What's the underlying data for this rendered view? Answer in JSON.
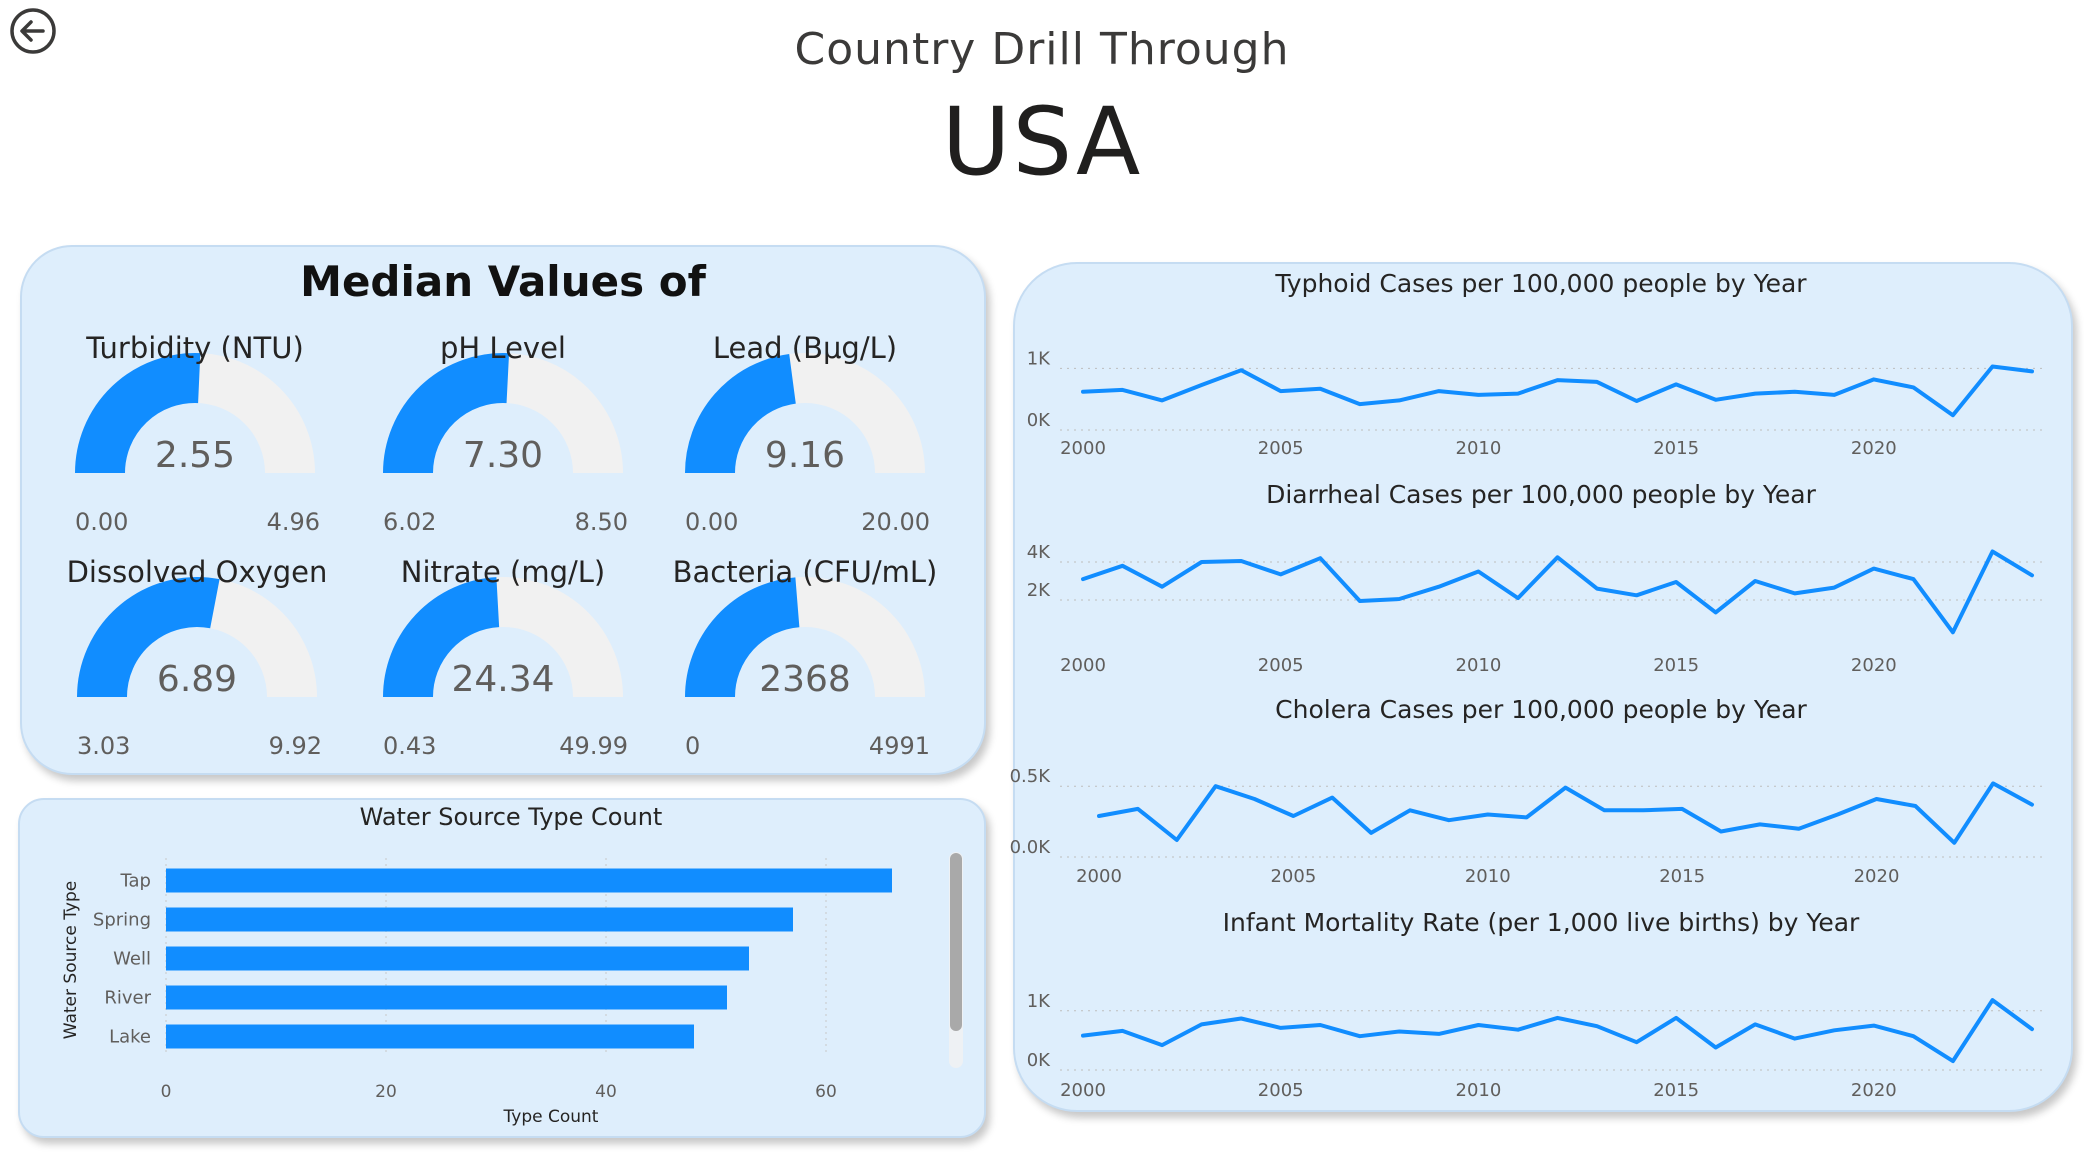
{
  "header": {
    "title": "Country Drill Through",
    "country": "USA",
    "back_icon": "arrow-left-circle-icon"
  },
  "colors": {
    "accent": "#118dff",
    "gauge_track": "#f1f1f1",
    "panel_bg": "#deeefc"
  },
  "gauge_panel": {
    "title": "Median Values of"
  },
  "gauges": [
    {
      "label": "Turbidity (NTU)",
      "value": 2.55,
      "display": "2.55",
      "min": "0.00",
      "max": "4.96",
      "min_v": 0,
      "max_v": 4.96
    },
    {
      "label": "pH Level",
      "value": 7.3,
      "display": "7.30",
      "min": "6.02",
      "max": "8.50",
      "min_v": 6.02,
      "max_v": 8.5
    },
    {
      "label": "Lead (Bμg/L)",
      "value": 9.16,
      "display": "9.16",
      "min": "0.00",
      "max": "20.00",
      "min_v": 0,
      "max_v": 20
    },
    {
      "label": "Dissolved Oxygen",
      "value": 6.89,
      "display": "6.89",
      "min": "3.03",
      "max": "9.92",
      "min_v": 3.03,
      "max_v": 9.92
    },
    {
      "label": "Nitrate (mg/L)",
      "value": 24.34,
      "display": "24.34",
      "min": "0.43",
      "max": "49.99",
      "min_v": 0.43,
      "max_v": 49.99
    },
    {
      "label": "Bacteria (CFU/mL)",
      "value": 2368,
      "display": "2368",
      "min": "0",
      "max": "4991",
      "min_v": 0,
      "max_v": 4991
    }
  ],
  "chart_data": [
    {
      "type": "bar",
      "orientation": "horizontal",
      "title": "Water Source Type Count",
      "xlabel": "Type Count",
      "ylabel": "Water Source Type",
      "categories": [
        "Tap",
        "Spring",
        "Well",
        "River",
        "Lake"
      ],
      "values": [
        66,
        57,
        53,
        51,
        48
      ],
      "xlim": [
        0,
        72
      ],
      "xticks": [
        "0",
        "20",
        "40",
        "60"
      ],
      "grid": true
    },
    {
      "type": "line",
      "title": "Typhoid Cases per 100,000 people by Year",
      "x": [
        2000,
        2001,
        2002,
        2003,
        2004,
        2005,
        2006,
        2007,
        2008,
        2009,
        2010,
        2011,
        2012,
        2013,
        2014,
        2015,
        2016,
        2017,
        2018,
        2019,
        2020,
        2021,
        2022,
        2023,
        2024
      ],
      "y": [
        620,
        650,
        480,
        730,
        970,
        630,
        670,
        420,
        480,
        630,
        570,
        590,
        810,
        780,
        470,
        740,
        490,
        590,
        620,
        570,
        820,
        690,
        240,
        1030,
        950
      ],
      "ylim": [
        0,
        1200
      ],
      "yticks": [
        "0K",
        "1K"
      ],
      "xticks": [
        "2000",
        "2005",
        "2010",
        "2015",
        "2020"
      ],
      "grid": true
    },
    {
      "type": "line",
      "title": "Diarrheal Cases per 100,000 people by Year",
      "x": [
        2000,
        2001,
        2002,
        2003,
        2004,
        2005,
        2006,
        2007,
        2008,
        2009,
        2010,
        2011,
        2012,
        2013,
        2014,
        2015,
        2016,
        2017,
        2018,
        2019,
        2020,
        2021,
        2022,
        2023,
        2024
      ],
      "y": [
        3100,
        3800,
        2700,
        4000,
        4050,
        3350,
        4200,
        1950,
        2050,
        2700,
        3500,
        2100,
        4250,
        2600,
        2250,
        2950,
        1350,
        3000,
        2350,
        2650,
        3650,
        3100,
        300,
        4550,
        3300
      ],
      "ylim": [
        0,
        5000
      ],
      "yticks": [
        "2K",
        "4K"
      ],
      "xticks": [
        "2000",
        "2005",
        "2010",
        "2015",
        "2020"
      ],
      "grid": true
    },
    {
      "type": "line",
      "title": "Cholera Cases per 100,000 people by Year",
      "x": [
        2000,
        2001,
        2002,
        2003,
        2004,
        2005,
        2006,
        2007,
        2008,
        2009,
        2010,
        2011,
        2012,
        2013,
        2014,
        2015,
        2016,
        2017,
        2018,
        2019,
        2020,
        2021,
        2022,
        2023,
        2024
      ],
      "y": [
        290,
        340,
        120,
        500,
        410,
        290,
        420,
        170,
        330,
        260,
        300,
        280,
        490,
        330,
        330,
        340,
        180,
        230,
        200,
        300,
        410,
        360,
        100,
        520,
        370
      ],
      "ylim": [
        0,
        650
      ],
      "yticks": [
        "0.0K",
        "0.5K"
      ],
      "xticks": [
        "2000",
        "2005",
        "2010",
        "2015",
        "2020"
      ],
      "grid": true
    },
    {
      "type": "line",
      "title": "Infant Mortality Rate (per 1,000 live births) by Year",
      "x": [
        2000,
        2001,
        2002,
        2003,
        2004,
        2005,
        2006,
        2007,
        2008,
        2009,
        2010,
        2011,
        2012,
        2013,
        2014,
        2015,
        2016,
        2017,
        2018,
        2019,
        2020,
        2021,
        2022,
        2023,
        2024
      ],
      "y": [
        580,
        660,
        420,
        770,
        870,
        710,
        760,
        570,
        650,
        610,
        760,
        680,
        880,
        740,
        470,
        880,
        380,
        770,
        530,
        670,
        750,
        570,
        150,
        1180,
        690
      ],
      "ylim": [
        0,
        1300
      ],
      "yticks": [
        "0K",
        "1K"
      ],
      "xticks": [
        "2000",
        "2005",
        "2010",
        "2015",
        "2020"
      ],
      "grid": true
    }
  ]
}
